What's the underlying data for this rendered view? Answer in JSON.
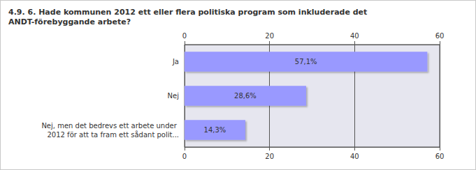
{
  "chart_data": {
    "type": "bar",
    "orientation": "horizontal",
    "title": "4.9. 6. Hade kommunen 2012 ett eller flera politiska program som inkluderade det ANDT-förebyggande arbete?",
    "categories": [
      "Ja",
      "Nej",
      "Nej, men det bedrevs ett arbete under 2012 för att ta fram ett sådant polit..."
    ],
    "values": [
      57.1,
      28.6,
      14.3
    ],
    "value_labels": [
      "57,1%",
      "28,6%",
      "14,3%"
    ],
    "data_labels": true,
    "color": "#9999ff",
    "xlim": [
      0,
      60
    ],
    "xticks": [
      0,
      20,
      40,
      60
    ],
    "grid": true
  }
}
